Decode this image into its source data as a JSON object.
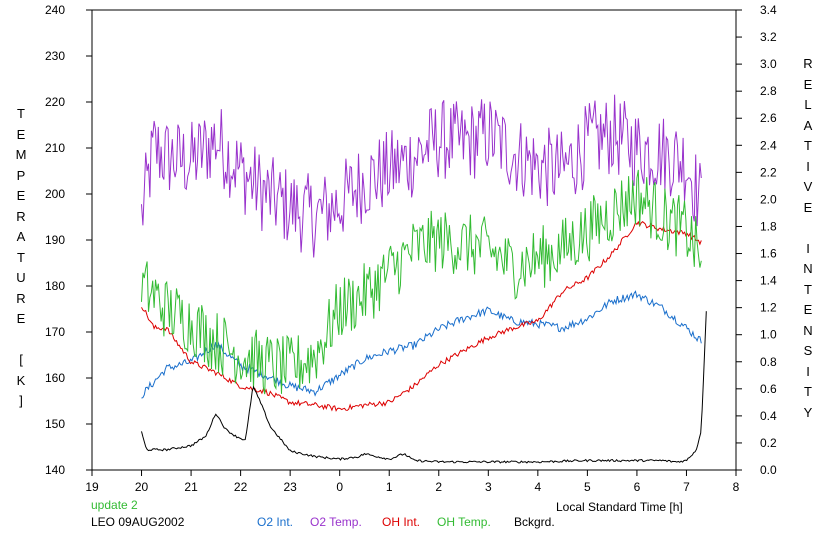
{
  "chart_data": {
    "type": "line",
    "title": "",
    "xlabel": "Local Standard Time [h]",
    "ylabel_left": "TEMPERATURE [K]",
    "ylabel_right": "RELATIVE INTENSITY",
    "x_ticks": [
      {
        "value": 19,
        "label": "19"
      },
      {
        "value": 20,
        "label": "20"
      },
      {
        "value": 21,
        "label": "21"
      },
      {
        "value": 22,
        "label": "22"
      },
      {
        "value": 23,
        "label": "23"
      },
      {
        "value": 24,
        "label": "0"
      },
      {
        "value": 25,
        "label": "1"
      },
      {
        "value": 26,
        "label": "2"
      },
      {
        "value": 27,
        "label": "3"
      },
      {
        "value": 28,
        "label": "4"
      },
      {
        "value": 29,
        "label": "5"
      },
      {
        "value": 30,
        "label": "6"
      },
      {
        "value": 31,
        "label": "7"
      },
      {
        "value": 32,
        "label": "8"
      }
    ],
    "xlim": [
      19,
      32
    ],
    "ylim_left": [
      140,
      240
    ],
    "ylim_right": [
      0,
      3.4
    ],
    "left_ticks": [
      "140",
      "150",
      "160",
      "170",
      "180",
      "190",
      "200",
      "210",
      "220",
      "230",
      "240"
    ],
    "right_ticks": [
      "0.0",
      "0.2",
      "0.4",
      "0.6",
      "0.8",
      "1.0",
      "1.2",
      "1.4",
      "1.6",
      "1.8",
      "2.0",
      "2.2",
      "2.4",
      "2.6",
      "2.8",
      "3.0",
      "3.2",
      "3.4"
    ],
    "grid": false,
    "legend_position": "bottom",
    "series": [
      {
        "name": "O2 Temp.",
        "axis": "left",
        "color": "#9933cc",
        "x": [
          20.0,
          20.25,
          20.5,
          21.0,
          21.5,
          22.0,
          22.5,
          23.0,
          23.5,
          24.0,
          24.5,
          25.0,
          25.5,
          26.0,
          26.5,
          27.0,
          27.5,
          28.0,
          28.5,
          29.0,
          29.5,
          30.0,
          30.5,
          31.0,
          31.3
        ],
        "y": [
          195,
          210,
          208,
          207,
          212,
          205,
          200,
          197,
          195,
          198,
          203,
          205,
          208,
          212,
          211,
          213,
          209,
          206,
          205,
          211,
          213,
          210,
          209,
          207,
          198
        ]
      },
      {
        "name": "O2 Int.",
        "axis": "right",
        "color": "#1a6fcc",
        "x": [
          20.0,
          20.5,
          21.0,
          21.5,
          22.0,
          22.5,
          23.0,
          23.5,
          24.0,
          24.5,
          25.0,
          25.5,
          26.0,
          26.5,
          27.0,
          27.5,
          28.0,
          28.5,
          29.0,
          29.5,
          30.0,
          30.5,
          31.0,
          31.3
        ],
        "y": [
          0.55,
          0.75,
          0.8,
          0.93,
          0.77,
          0.7,
          0.62,
          0.58,
          0.7,
          0.82,
          0.88,
          0.92,
          1.04,
          1.12,
          1.18,
          1.1,
          1.08,
          1.05,
          1.12,
          1.25,
          1.3,
          1.2,
          1.05,
          0.95
        ]
      },
      {
        "name": "OH Int.",
        "axis": "right",
        "color": "#dd0000",
        "x": [
          20.0,
          20.25,
          20.5,
          21.0,
          21.5,
          22.0,
          22.5,
          23.0,
          23.5,
          24.0,
          24.5,
          25.0,
          25.5,
          26.0,
          26.5,
          27.0,
          27.5,
          28.0,
          28.5,
          29.0,
          29.5,
          30.0,
          30.5,
          31.0,
          31.3
        ],
        "y": [
          1.22,
          1.05,
          1.05,
          0.8,
          0.72,
          0.62,
          0.58,
          0.5,
          0.48,
          0.45,
          0.48,
          0.5,
          0.62,
          0.78,
          0.88,
          0.98,
          1.05,
          1.1,
          1.32,
          1.42,
          1.6,
          1.83,
          1.78,
          1.75,
          1.68
        ]
      },
      {
        "name": "OH Temp.",
        "axis": "left",
        "color": "#33bb33",
        "x": [
          20.0,
          20.25,
          20.5,
          21.0,
          21.5,
          22.0,
          22.5,
          23.0,
          23.5,
          24.0,
          24.5,
          25.0,
          25.5,
          26.0,
          26.5,
          27.0,
          27.5,
          28.0,
          28.5,
          29.0,
          29.5,
          30.0,
          30.5,
          31.0,
          31.3
        ],
        "y": [
          180,
          178,
          175,
          172,
          168,
          165,
          163,
          162,
          165,
          175,
          178,
          183,
          188,
          190,
          189,
          188,
          184,
          186,
          188,
          192,
          196,
          200,
          195,
          192,
          186
        ]
      },
      {
        "name": "Bckgrd.",
        "axis": "right",
        "color": "#000000",
        "x": [
          20.0,
          20.1,
          20.5,
          21.0,
          21.3,
          21.5,
          21.7,
          21.9,
          22.1,
          22.25,
          22.4,
          22.6,
          23.0,
          23.5,
          24.0,
          24.4,
          24.5,
          25.0,
          25.3,
          25.5,
          26.0,
          27.0,
          28.0,
          29.0,
          30.0,
          30.5,
          30.8,
          31.0,
          31.2,
          31.3,
          31.4
        ],
        "y": [
          0.28,
          0.15,
          0.15,
          0.18,
          0.25,
          0.42,
          0.3,
          0.25,
          0.22,
          0.62,
          0.5,
          0.32,
          0.14,
          0.1,
          0.08,
          0.1,
          0.12,
          0.08,
          0.12,
          0.07,
          0.06,
          0.06,
          0.06,
          0.07,
          0.07,
          0.07,
          0.06,
          0.07,
          0.15,
          0.3,
          1.18
        ]
      }
    ]
  },
  "footer": {
    "update": "update 2",
    "station": "LEO 09AUG2002",
    "update_color": "#33bb33"
  },
  "legend": [
    {
      "label": "O2 Int.",
      "color": "#1a6fcc"
    },
    {
      "label": "O2 Temp.",
      "color": "#9933cc"
    },
    {
      "label": "OH Int.",
      "color": "#dd0000"
    },
    {
      "label": "OH Temp.",
      "color": "#33bb33"
    },
    {
      "label": "Bckgrd.",
      "color": "#000000"
    }
  ]
}
